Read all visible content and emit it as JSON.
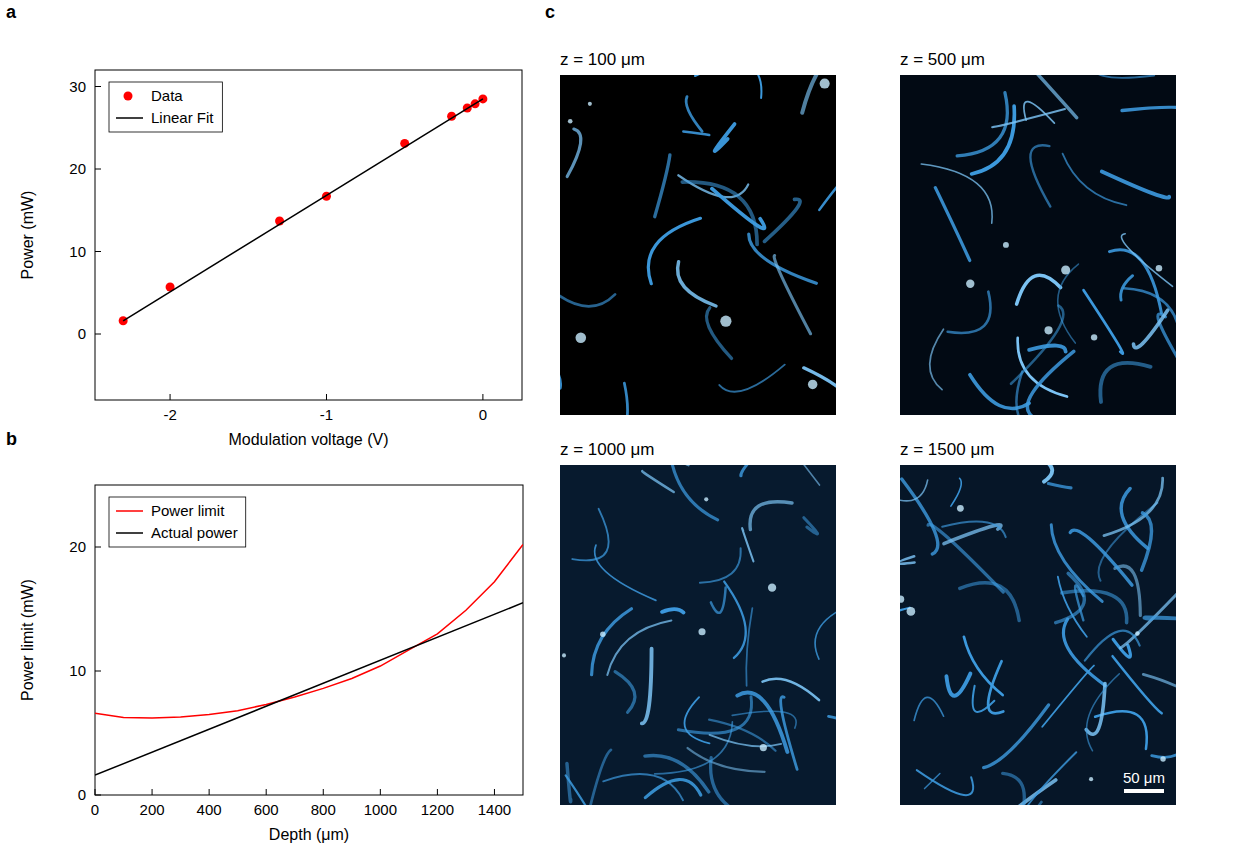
{
  "chart_data": [
    {
      "panel": "a",
      "type": "scatter",
      "x_label": "Modulation voltage (V)",
      "y_label": "Power (mW)",
      "xlim": [
        -2.48,
        0.25
      ],
      "ylim": [
        -8,
        32
      ],
      "xticks": [
        -2,
        -1,
        0
      ],
      "yticks": [
        0,
        10,
        20,
        30
      ],
      "legend": "upper left",
      "series": [
        {
          "name": "Data",
          "type": "scatter",
          "marker": "circle",
          "color": "#ff0000",
          "x": [
            -2.3,
            -2.0,
            -1.3,
            -1.0,
            -0.5,
            -0.2,
            -0.1,
            -0.05,
            0
          ],
          "values": [
            1.6,
            5.7,
            13.7,
            16.7,
            23.1,
            26.4,
            27.4,
            27.9,
            28.5
          ]
        },
        {
          "name": "Linear Fit",
          "type": "line",
          "line_style": "solid",
          "color": "#000000",
          "x": [
            -2.3,
            0
          ],
          "values": [
            1.6,
            28.5
          ]
        }
      ]
    },
    {
      "panel": "b",
      "type": "line",
      "x_label": "Depth (μm)",
      "y_label": "Power limit (mW)",
      "xlim": [
        0,
        1500
      ],
      "ylim": [
        0,
        25
      ],
      "xticks": [
        0,
        200,
        400,
        600,
        800,
        1000,
        1200,
        1400
      ],
      "yticks": [
        0,
        10,
        20
      ],
      "legend": "upper left",
      "series": [
        {
          "name": "Power limit",
          "type": "line",
          "line_style": "solid",
          "color": "#ff0000",
          "x": [
            0,
            100,
            200,
            300,
            400,
            500,
            600,
            700,
            800,
            900,
            1000,
            1100,
            1200,
            1300,
            1400,
            1500
          ],
          "values": [
            6.6,
            6.25,
            6.2,
            6.3,
            6.5,
            6.8,
            7.3,
            7.9,
            8.6,
            9.4,
            10.4,
            11.7,
            13.0,
            14.9,
            17.2,
            20.2
          ]
        },
        {
          "name": "Actual power",
          "type": "line",
          "line_style": "solid",
          "color": "#000000",
          "x": [
            0,
            1500
          ],
          "values": [
            1.6,
            15.5
          ]
        }
      ]
    }
  ],
  "image_panel": {
    "panel": "c",
    "images": [
      {
        "caption": "z = 100 μm"
      },
      {
        "caption": "z = 500 μm"
      },
      {
        "caption": "z = 1000 μm"
      },
      {
        "caption": "z = 1500 μm"
      }
    ],
    "scale_bar": "50 μm"
  }
}
